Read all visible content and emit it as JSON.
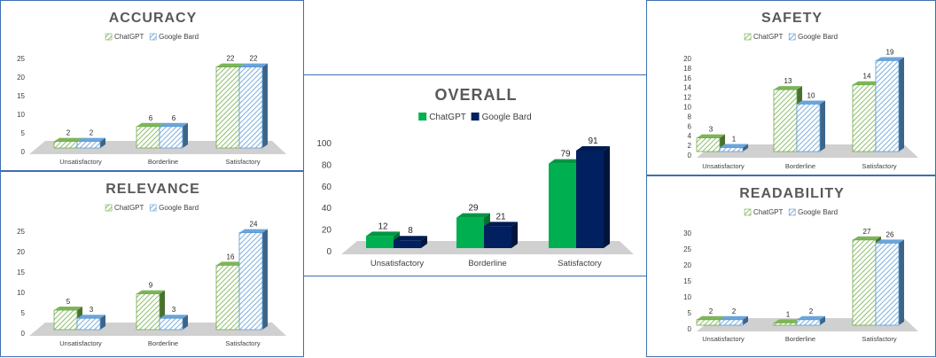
{
  "chart_data": [
    {
      "id": "accuracy",
      "type": "bar",
      "title": "ACCURACY",
      "categories": [
        "Unsatisfactory",
        "Borderline",
        "Satisfactory"
      ],
      "series": [
        {
          "name": "ChatGPT",
          "values": [
            2,
            6,
            22
          ]
        },
        {
          "name": "Google Bard",
          "values": [
            2,
            6,
            22
          ]
        }
      ],
      "yticks": [
        0,
        5,
        10,
        15,
        20,
        25
      ],
      "ylim": [
        0,
        25
      ],
      "style": "hatched-3d",
      "colors": {
        "ChatGPT": "#70ad47",
        "Google Bard": "#5b9bd5"
      }
    },
    {
      "id": "relevance",
      "type": "bar",
      "title": "RELEVANCE",
      "categories": [
        "Unsatisfactory",
        "Borderline",
        "Satisfactory"
      ],
      "series": [
        {
          "name": "ChatGPT",
          "values": [
            5,
            9,
            16
          ]
        },
        {
          "name": "Google Bard",
          "values": [
            3,
            3,
            24
          ]
        }
      ],
      "yticks": [
        0,
        5,
        10,
        15,
        20,
        25
      ],
      "ylim": [
        0,
        25
      ],
      "style": "hatched-3d",
      "colors": {
        "ChatGPT": "#70ad47",
        "Google Bard": "#5b9bd5"
      }
    },
    {
      "id": "overall",
      "type": "bar",
      "title": "OVERALL",
      "categories": [
        "Unsatisfactory",
        "Borderline",
        "Satisfactory"
      ],
      "series": [
        {
          "name": "ChatGPT",
          "values": [
            12,
            29,
            79
          ]
        },
        {
          "name": "Google Bard",
          "values": [
            8,
            21,
            91
          ]
        }
      ],
      "yticks": [
        0,
        20,
        40,
        60,
        80,
        100
      ],
      "ylim": [
        0,
        100
      ],
      "style": "solid-3d",
      "colors": {
        "ChatGPT": "#00b050",
        "Google Bard": "#002060"
      }
    },
    {
      "id": "safety",
      "type": "bar",
      "title": "SAFETY",
      "categories": [
        "Unsatisfactory",
        "Borderline",
        "Satisfactory"
      ],
      "series": [
        {
          "name": "ChatGPT",
          "values": [
            3,
            13,
            14
          ]
        },
        {
          "name": "Google Bard",
          "values": [
            1,
            10,
            19
          ]
        }
      ],
      "yticks": [
        0,
        2,
        4,
        6,
        8,
        10,
        12,
        14,
        16,
        18,
        20
      ],
      "ylim": [
        0,
        20
      ],
      "style": "hatched-3d",
      "colors": {
        "ChatGPT": "#70ad47",
        "Google Bard": "#5b9bd5"
      }
    },
    {
      "id": "readability",
      "type": "bar",
      "title": "READABILITY",
      "categories": [
        "Unsatisfactory",
        "Borderline",
        "Satisfactory"
      ],
      "series": [
        {
          "name": "ChatGPT",
          "values": [
            2,
            1,
            27
          ]
        },
        {
          "name": "Google Bard",
          "values": [
            2,
            2,
            26
          ]
        }
      ],
      "yticks": [
        0,
        5,
        10,
        15,
        20,
        25,
        30
      ],
      "ylim": [
        0,
        30
      ],
      "style": "hatched-3d",
      "colors": {
        "ChatGPT": "#70ad47",
        "Google Bard": "#5b9bd5"
      }
    }
  ]
}
